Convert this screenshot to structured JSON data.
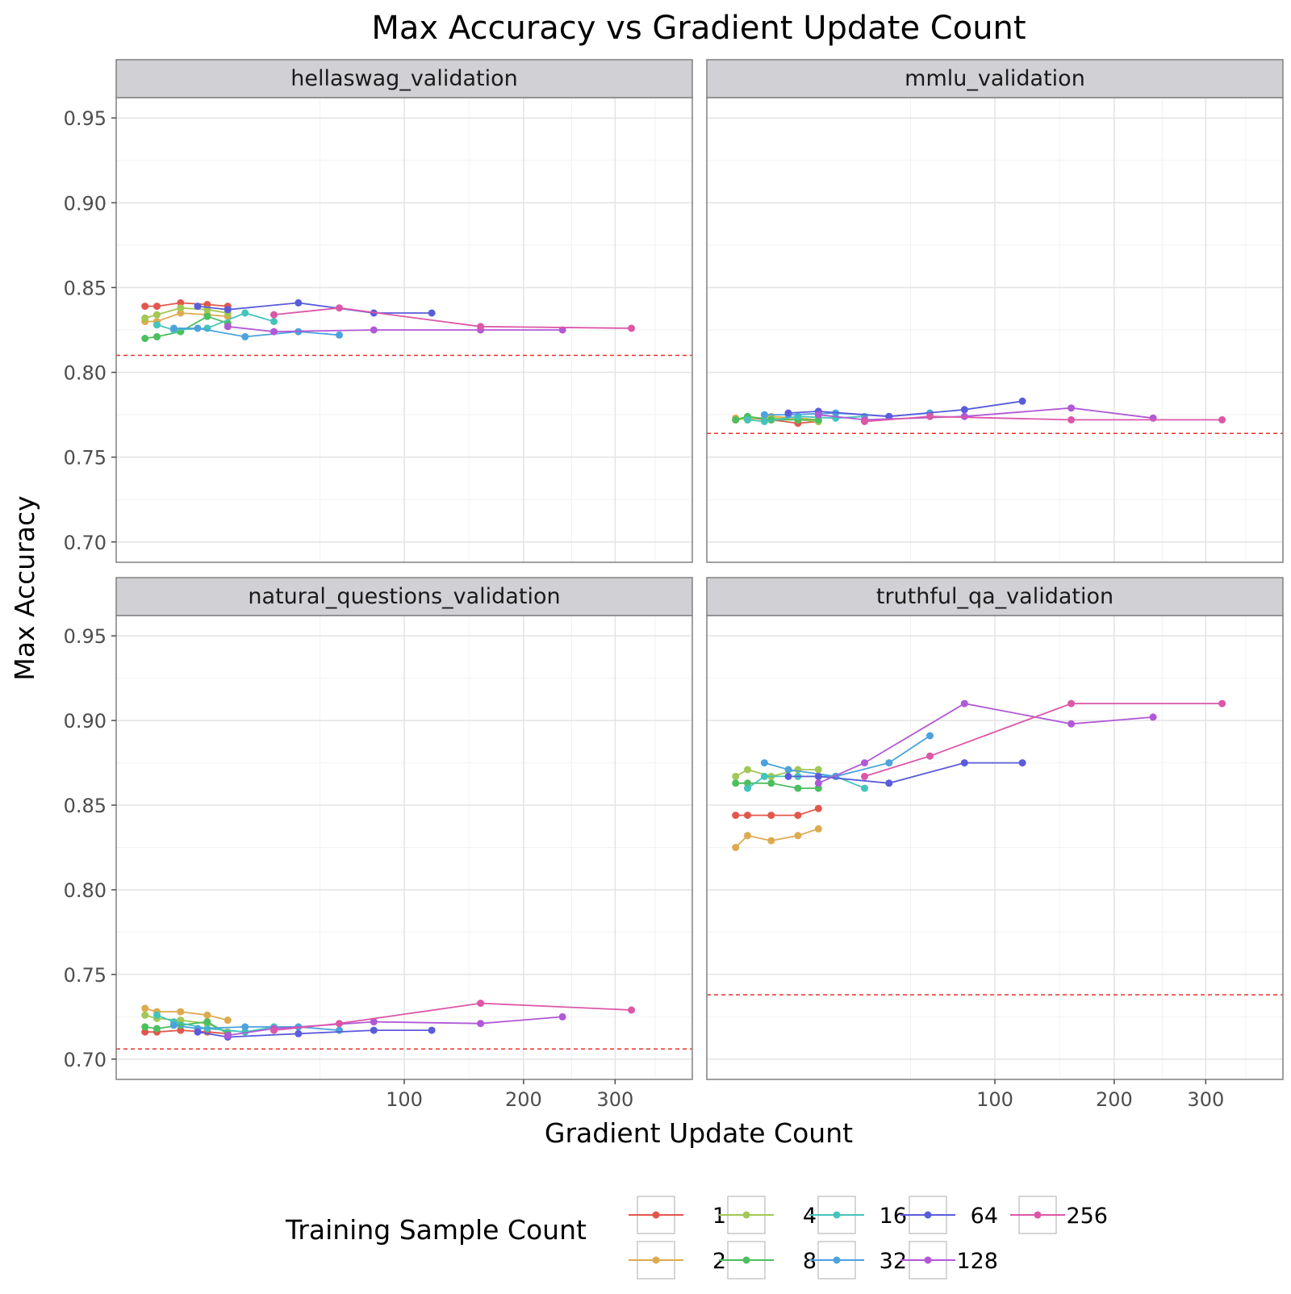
{
  "chart_data": {
    "type": "line",
    "title": "Max Accuracy vs Gradient Update Count",
    "xlabel": "Gradient Update Count",
    "ylabel": "Max Accuracy",
    "x_scale": "sqrt",
    "xlim": [
      0,
      400
    ],
    "ylim": [
      0.688,
      0.962
    ],
    "x_ticks": [
      100,
      200,
      300
    ],
    "y_ticks": [
      0.7,
      0.75,
      0.8,
      0.85,
      0.9,
      0.95
    ],
    "y_tick_labels": [
      "0.70",
      "0.75",
      "0.80",
      "0.85",
      "0.90",
      "0.95"
    ],
    "legend_title": "Training Sample Count",
    "legend_position": "bottom",
    "series_meta": [
      {
        "name": "1",
        "color": "#E2574C"
      },
      {
        "name": "2",
        "color": "#DDAA4E"
      },
      {
        "name": "4",
        "color": "#A2C855"
      },
      {
        "name": "8",
        "color": "#4CBF5E"
      },
      {
        "name": "16",
        "color": "#44C4BB"
      },
      {
        "name": "32",
        "color": "#4CA2DD"
      },
      {
        "name": "64",
        "color": "#5A5CDB"
      },
      {
        "name": "128",
        "color": "#B158D6"
      },
      {
        "name": "256",
        "color": "#DC57A8"
      }
    ],
    "panels": [
      {
        "name": "hellaswag_validation",
        "baseline": 0.81,
        "series": [
          {
            "name": "1",
            "points": [
              [
                1,
                0.839
              ],
              [
                2,
                0.839
              ],
              [
                5,
                0.841
              ],
              [
                10,
                0.84
              ],
              [
                15,
                0.839
              ]
            ]
          },
          {
            "name": "2",
            "points": [
              [
                1,
                0.83
              ],
              [
                2,
                0.83
              ],
              [
                5,
                0.835
              ],
              [
                10,
                0.834
              ],
              [
                15,
                0.833
              ]
            ]
          },
          {
            "name": "4",
            "points": [
              [
                1,
                0.832
              ],
              [
                2,
                0.834
              ],
              [
                5,
                0.838
              ],
              [
                10,
                0.837
              ],
              [
                15,
                0.835
              ]
            ]
          },
          {
            "name": "8",
            "points": [
              [
                1,
                0.82
              ],
              [
                2,
                0.821
              ],
              [
                5,
                0.824
              ],
              [
                10,
                0.833
              ],
              [
                15,
                0.829
              ]
            ]
          },
          {
            "name": "16",
            "points": [
              [
                2,
                0.828
              ],
              [
                4,
                0.825
              ],
              [
                10,
                0.826
              ],
              [
                20,
                0.835
              ],
              [
                30,
                0.83
              ]
            ]
          },
          {
            "name": "32",
            "points": [
              [
                4,
                0.826
              ],
              [
                8,
                0.826
              ],
              [
                20,
                0.821
              ],
              [
                40,
                0.824
              ],
              [
                60,
                0.822
              ]
            ]
          },
          {
            "name": "64",
            "points": [
              [
                8,
                0.839
              ],
              [
                15,
                0.837
              ],
              [
                40,
                0.841
              ],
              [
                80,
                0.835
              ],
              [
                120,
                0.835
              ]
            ]
          },
          {
            "name": "128",
            "points": [
              [
                15,
                0.827
              ],
              [
                30,
                0.824
              ],
              [
                80,
                0.825
              ],
              [
                160,
                0.825
              ],
              [
                240,
                0.825
              ]
            ]
          },
          {
            "name": "256",
            "points": [
              [
                30,
                0.834
              ],
              [
                60,
                0.838
              ],
              [
                160,
                0.827
              ],
              [
                320,
                0.826
              ]
            ]
          }
        ]
      },
      {
        "name": "mmlu_validation",
        "baseline": 0.764,
        "series": [
          {
            "name": "1",
            "points": [
              [
                1,
                0.772
              ],
              [
                2,
                0.773
              ],
              [
                5,
                0.772
              ],
              [
                10,
                0.77
              ],
              [
                15,
                0.771
              ]
            ]
          },
          {
            "name": "2",
            "points": [
              [
                1,
                0.773
              ],
              [
                2,
                0.772
              ],
              [
                5,
                0.774
              ],
              [
                10,
                0.773
              ],
              [
                15,
                0.772
              ]
            ]
          },
          {
            "name": "4",
            "points": [
              [
                1,
                0.772
              ],
              [
                2,
                0.773
              ],
              [
                5,
                0.773
              ],
              [
                10,
                0.772
              ],
              [
                15,
                0.771
              ]
            ]
          },
          {
            "name": "8",
            "points": [
              [
                1,
                0.772
              ],
              [
                2,
                0.774
              ],
              [
                5,
                0.772
              ],
              [
                10,
                0.772
              ],
              [
                15,
                0.772
              ]
            ]
          },
          {
            "name": "16",
            "points": [
              [
                2,
                0.772
              ],
              [
                4,
                0.771
              ],
              [
                10,
                0.774
              ],
              [
                20,
                0.773
              ],
              [
                30,
                0.774
              ]
            ]
          },
          {
            "name": "32",
            "points": [
              [
                4,
                0.775
              ],
              [
                8,
                0.775
              ],
              [
                20,
                0.776
              ],
              [
                40,
                0.774
              ],
              [
                60,
                0.776
              ]
            ]
          },
          {
            "name": "64",
            "points": [
              [
                8,
                0.776
              ],
              [
                15,
                0.777
              ],
              [
                40,
                0.774
              ],
              [
                80,
                0.778
              ],
              [
                120,
                0.783
              ]
            ]
          },
          {
            "name": "128",
            "points": [
              [
                15,
                0.775
              ],
              [
                30,
                0.772
              ],
              [
                80,
                0.774
              ],
              [
                160,
                0.779
              ],
              [
                240,
                0.773
              ]
            ]
          },
          {
            "name": "256",
            "points": [
              [
                30,
                0.771
              ],
              [
                60,
                0.774
              ],
              [
                160,
                0.772
              ],
              [
                320,
                0.772
              ]
            ]
          }
        ]
      },
      {
        "name": "natural_questions_validation",
        "baseline": 0.706,
        "series": [
          {
            "name": "1",
            "points": [
              [
                1,
                0.716
              ],
              [
                2,
                0.716
              ],
              [
                5,
                0.717
              ],
              [
                10,
                0.716
              ],
              [
                15,
                0.715
              ]
            ]
          },
          {
            "name": "2",
            "points": [
              [
                1,
                0.73
              ],
              [
                2,
                0.728
              ],
              [
                5,
                0.728
              ],
              [
                10,
                0.726
              ],
              [
                15,
                0.723
              ]
            ]
          },
          {
            "name": "4",
            "points": [
              [
                1,
                0.726
              ],
              [
                2,
                0.724
              ],
              [
                5,
                0.723
              ],
              [
                10,
                0.721
              ],
              [
                15,
                0.716
              ]
            ]
          },
          {
            "name": "8",
            "points": [
              [
                1,
                0.719
              ],
              [
                2,
                0.718
              ],
              [
                5,
                0.72
              ],
              [
                10,
                0.722
              ],
              [
                15,
                0.715
              ]
            ]
          },
          {
            "name": "16",
            "points": [
              [
                2,
                0.726
              ],
              [
                4,
                0.722
              ],
              [
                10,
                0.718
              ],
              [
                20,
                0.716
              ],
              [
                30,
                0.719
              ]
            ]
          },
          {
            "name": "32",
            "points": [
              [
                4,
                0.72
              ],
              [
                8,
                0.718
              ],
              [
                20,
                0.719
              ],
              [
                40,
                0.719
              ],
              [
                60,
                0.717
              ]
            ]
          },
          {
            "name": "64",
            "points": [
              [
                8,
                0.716
              ],
              [
                15,
                0.713
              ],
              [
                40,
                0.715
              ],
              [
                80,
                0.717
              ],
              [
                120,
                0.717
              ]
            ]
          },
          {
            "name": "128",
            "points": [
              [
                15,
                0.714
              ],
              [
                30,
                0.718
              ],
              [
                80,
                0.722
              ],
              [
                160,
                0.721
              ],
              [
                240,
                0.725
              ]
            ]
          },
          {
            "name": "256",
            "points": [
              [
                30,
                0.717
              ],
              [
                60,
                0.721
              ],
              [
                160,
                0.733
              ],
              [
                320,
                0.729
              ]
            ]
          }
        ]
      },
      {
        "name": "truthful_qa_validation",
        "baseline": 0.738,
        "series": [
          {
            "name": "1",
            "points": [
              [
                1,
                0.844
              ],
              [
                2,
                0.844
              ],
              [
                5,
                0.844
              ],
              [
                10,
                0.844
              ],
              [
                15,
                0.848
              ]
            ]
          },
          {
            "name": "2",
            "points": [
              [
                1,
                0.825
              ],
              [
                2,
                0.832
              ],
              [
                5,
                0.829
              ],
              [
                10,
                0.832
              ],
              [
                15,
                0.836
              ]
            ]
          },
          {
            "name": "4",
            "points": [
              [
                1,
                0.867
              ],
              [
                2,
                0.871
              ],
              [
                5,
                0.867
              ],
              [
                10,
                0.871
              ],
              [
                15,
                0.871
              ]
            ]
          },
          {
            "name": "8",
            "points": [
              [
                1,
                0.863
              ],
              [
                2,
                0.863
              ],
              [
                5,
                0.863
              ],
              [
                10,
                0.86
              ],
              [
                15,
                0.86
              ]
            ]
          },
          {
            "name": "16",
            "points": [
              [
                2,
                0.86
              ],
              [
                4,
                0.867
              ],
              [
                10,
                0.867
              ],
              [
                20,
                0.867
              ],
              [
                30,
                0.86
              ]
            ]
          },
          {
            "name": "32",
            "points": [
              [
                4,
                0.875
              ],
              [
                8,
                0.871
              ],
              [
                20,
                0.867
              ],
              [
                40,
                0.875
              ],
              [
                60,
                0.891
              ]
            ]
          },
          {
            "name": "64",
            "points": [
              [
                8,
                0.867
              ],
              [
                15,
                0.867
              ],
              [
                40,
                0.863
              ],
              [
                80,
                0.875
              ],
              [
                120,
                0.875
              ]
            ]
          },
          {
            "name": "128",
            "points": [
              [
                15,
                0.863
              ],
              [
                30,
                0.875
              ],
              [
                80,
                0.91
              ],
              [
                160,
                0.898
              ],
              [
                240,
                0.902
              ]
            ]
          },
          {
            "name": "256",
            "points": [
              [
                30,
                0.867
              ],
              [
                60,
                0.879
              ],
              [
                160,
                0.91
              ],
              [
                320,
                0.91
              ]
            ]
          }
        ]
      }
    ]
  }
}
